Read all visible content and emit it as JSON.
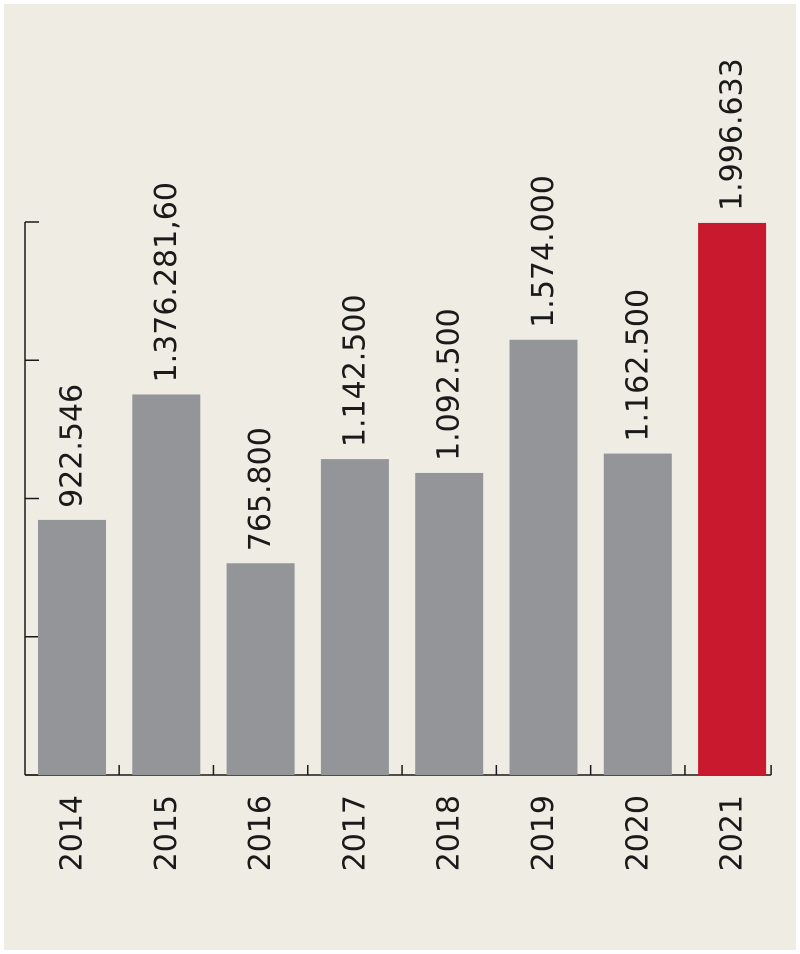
{
  "colors": {
    "background": "#efece3",
    "bar": "#939598",
    "highlight": "#c8192f",
    "axis": "#1a1a1a"
  },
  "chart_data": {
    "type": "bar",
    "orientation": "vertical-bars-rotated-labels",
    "categories": [
      "2014",
      "2015",
      "2016",
      "2017",
      "2018",
      "2019",
      "2020",
      "2021"
    ],
    "values": [
      922546,
      1376281.6,
      765800,
      1142500,
      1092500,
      1574000,
      1162500,
      1996633
    ],
    "value_labels": [
      "922.546",
      "1.376.281,60",
      "765.800",
      "1.142.500",
      "1.092.500",
      "1.574.000",
      "1.162.500",
      "1.996.633"
    ],
    "highlight_index": 7,
    "title": "",
    "xlabel": "",
    "ylabel": "",
    "ylim": [
      0,
      2000000
    ],
    "y_ticks": [
      0,
      500000,
      1000000,
      1500000,
      2000000
    ],
    "grid": false,
    "legend": "none"
  }
}
